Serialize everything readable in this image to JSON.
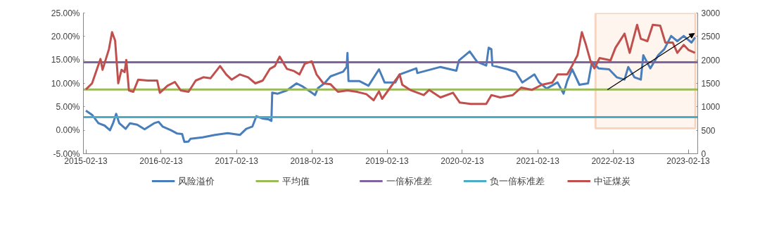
{
  "chart_data": {
    "type": "line",
    "xlim": [
      "2015-02-01",
      "2023-03-31"
    ],
    "xticks": [
      "2015-02-13",
      "2016-02-13",
      "2017-02-13",
      "2018-02-13",
      "2019-02-13",
      "2020-02-13",
      "2021-02-13",
      "2022-02-13",
      "2023-02-13"
    ],
    "ylim": [
      -5,
      25
    ],
    "yticks": [
      {
        "value": -5,
        "label": "-5.00%"
      },
      {
        "value": 0,
        "label": "0.00%"
      },
      {
        "value": 5,
        "label": "5.00%"
      },
      {
        "value": 10,
        "label": "10.00%"
      },
      {
        "value": 15,
        "label": "15.00%"
      },
      {
        "value": 20,
        "label": "20.00%"
      },
      {
        "value": 25,
        "label": "25.00%"
      }
    ],
    "y2lim": [
      0,
      3000
    ],
    "y2ticks": [
      0,
      500,
      1000,
      1500,
      2000,
      2500,
      3000
    ],
    "grid": false,
    "legend": "bottom",
    "series": [
      {
        "name": "风险溢价",
        "color": "#4a7ebb",
        "x": [
          "2015-02-13",
          "2015-03-15",
          "2015-04-15",
          "2015-05-15",
          "2015-06-10",
          "2015-06-25",
          "2015-07-10",
          "2015-07-25",
          "2015-08-25",
          "2015-09-15",
          "2015-10-20",
          "2015-11-25",
          "2016-01-10",
          "2016-02-01",
          "2016-02-20",
          "2016-04-01",
          "2016-05-01",
          "2016-05-25",
          "2016-06-05",
          "2016-06-25",
          "2016-07-05",
          "2016-09-01",
          "2016-11-01",
          "2017-01-01",
          "2017-03-01",
          "2017-04-01",
          "2017-05-01",
          "2017-05-20",
          "2017-06-20",
          "2017-07-20",
          "2017-08-01",
          "2017-08-05",
          "2017-09-01",
          "2017-10-15",
          "2017-12-01",
          "2018-01-01",
          "2018-02-13",
          "2018-03-01",
          "2018-03-15",
          "2018-04-15",
          "2018-05-15",
          "2018-06-15",
          "2018-07-15",
          "2018-08-01",
          "2018-08-05",
          "2018-08-10",
          "2018-10-01",
          "2018-11-15",
          "2019-01-05",
          "2019-02-01",
          "2019-03-25",
          "2019-04-15",
          "2019-07-05",
          "2019-07-10",
          "2019-10-30",
          "2020-01-15",
          "2020-01-28",
          "2020-03-20",
          "2020-04-25",
          "2020-06-08",
          "2020-06-20",
          "2020-07-03",
          "2020-07-08",
          "2020-09-20",
          "2020-10-30",
          "2020-11-30",
          "2021-01-28",
          "2021-02-20",
          "2021-03-28",
          "2021-05-20",
          "2021-06-18",
          "2021-07-06",
          "2021-07-30",
          "2021-09-03",
          "2021-10-15",
          "2021-11-03",
          "2021-12-05",
          "2022-01-25",
          "2022-03-03",
          "2022-04-10",
          "2022-04-28",
          "2022-05-28",
          "2022-06-28",
          "2022-07-10",
          "2022-08-13",
          "2022-09-20",
          "2022-10-20",
          "2022-11-22",
          "2022-12-22",
          "2023-01-22",
          "2023-03-01",
          "2023-03-18"
        ],
        "values": [
          4.2,
          3.3,
          1.5,
          1.0,
          0.0,
          1.5,
          3.5,
          1.5,
          0.3,
          1.5,
          1.2,
          0.2,
          1.5,
          1.8,
          0.8,
          0.0,
          -0.7,
          -0.8,
          -2.5,
          -2.4,
          -1.8,
          -1.5,
          -1.0,
          -0.6,
          -1.0,
          0.3,
          0.8,
          3.0,
          2.5,
          2.3,
          2.0,
          8.0,
          7.8,
          8.5,
          10.0,
          9.3,
          8.0,
          7.5,
          9.0,
          10.0,
          11.5,
          12.0,
          12.5,
          13.5,
          16.5,
          10.5,
          10.5,
          9.5,
          13.0,
          10.2,
          10.2,
          11.9,
          13.2,
          12.2,
          13.5,
          12.7,
          14.9,
          16.8,
          14.6,
          13.8,
          17.6,
          17.3,
          13.8,
          13.0,
          12.4,
          10.2,
          11.9,
          10.2,
          8.9,
          10.2,
          7.8,
          10.5,
          13.0,
          9.7,
          10.0,
          14.6,
          13.2,
          13.0,
          11.3,
          10.8,
          13.5,
          11.3,
          10.8,
          16.0,
          13.2,
          16.0,
          17.3,
          20.1,
          19.0,
          20.1,
          18.7,
          19.8
        ]
      },
      {
        "name": "中证煤炭",
        "color": "#c0504d",
        "axis": "y2",
        "x": [
          "2015-02-13",
          "2015-03-15",
          "2015-04-25",
          "2015-05-05",
          "2015-06-05",
          "2015-06-20",
          "2015-07-05",
          "2015-07-20",
          "2015-08-05",
          "2015-08-20",
          "2015-08-28",
          "2015-09-10",
          "2015-10-01",
          "2015-10-25",
          "2015-12-10",
          "2016-01-25",
          "2016-02-07",
          "2016-03-15",
          "2016-04-20",
          "2016-05-18",
          "2016-06-25",
          "2016-07-30",
          "2016-09-05",
          "2016-10-10",
          "2016-11-25",
          "2016-12-25",
          "2017-01-20",
          "2017-03-01",
          "2017-04-10",
          "2017-05-15",
          "2017-06-20",
          "2017-07-25",
          "2017-08-18",
          "2017-09-10",
          "2017-10-15",
          "2017-11-20",
          "2017-12-15",
          "2018-01-10",
          "2018-02-13",
          "2018-03-08",
          "2018-04-10",
          "2018-05-15",
          "2018-06-20",
          "2018-08-05",
          "2018-09-20",
          "2018-11-05",
          "2018-12-10",
          "2019-01-05",
          "2019-01-20",
          "2019-02-25",
          "2019-04-15",
          "2019-04-28",
          "2019-06-05",
          "2019-08-10",
          "2019-09-05",
          "2019-10-30",
          "2019-12-30",
          "2020-02-01",
          "2020-03-25",
          "2020-06-08",
          "2020-07-03",
          "2020-08-15",
          "2020-10-15",
          "2020-11-25",
          "2021-01-15",
          "2021-03-05",
          "2021-04-25",
          "2021-05-20",
          "2021-07-06",
          "2021-07-30",
          "2021-08-25",
          "2021-09-15",
          "2021-10-05",
          "2021-10-28",
          "2021-11-15",
          "2021-12-10",
          "2022-02-01",
          "2022-02-25",
          "2022-04-10",
          "2022-05-05",
          "2022-06-10",
          "2022-06-28",
          "2022-07-30",
          "2022-08-25",
          "2022-09-30",
          "2022-10-25",
          "2022-11-30",
          "2022-12-22",
          "2023-01-22",
          "2023-02-15",
          "2023-03-18"
        ],
        "values": [
          1370,
          1500,
          2020,
          1790,
          2230,
          2590,
          2410,
          1500,
          1790,
          1740,
          2000,
          1350,
          1320,
          1580,
          1560,
          1560,
          1300,
          1450,
          1530,
          1350,
          1320,
          1560,
          1630,
          1610,
          1870,
          1690,
          1580,
          1690,
          1630,
          1500,
          1560,
          1810,
          1870,
          2070,
          1810,
          1760,
          1690,
          1920,
          1970,
          1690,
          1500,
          1480,
          1320,
          1350,
          1320,
          1270,
          1140,
          1330,
          1170,
          1390,
          1690,
          1470,
          1360,
          1250,
          1360,
          1200,
          1300,
          1090,
          1060,
          1060,
          1250,
          1200,
          1250,
          1410,
          1360,
          1470,
          1520,
          1690,
          1690,
          1880,
          2100,
          2590,
          2320,
          1960,
          1820,
          2040,
          1990,
          2260,
          2560,
          2150,
          2750,
          2450,
          2400,
          2750,
          2730,
          2370,
          2370,
          2150,
          2320,
          2210,
          2150
        ]
      }
    ],
    "ref_lines": [
      {
        "axis": "y",
        "value": 8.7,
        "label": "平均值",
        "color": "#9bbb59"
      },
      {
        "axis": "y",
        "value": 14.5,
        "label": "一倍标准差",
        "color": "#8064a2"
      },
      {
        "axis": "y",
        "value": 2.8,
        "label": "负一倍标准差",
        "color": "#4bacc6"
      }
    ],
    "bands": [
      {
        "axis": "x",
        "from": "2021-11-20",
        "to": "2023-03-20",
        "color": "#ed7d31"
      }
    ]
  }
}
